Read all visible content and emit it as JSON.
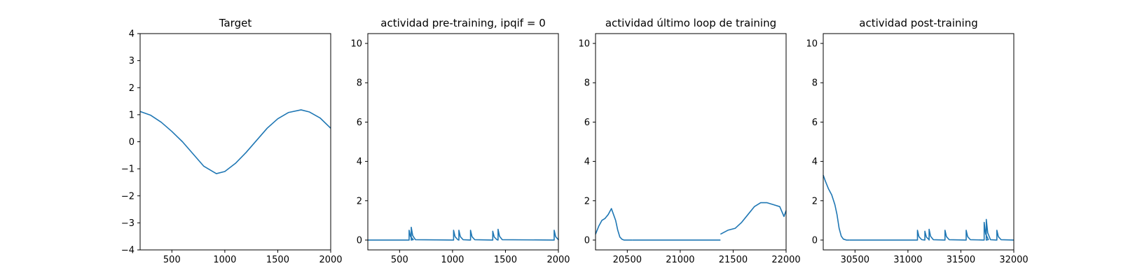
{
  "chart_data": [
    {
      "type": "line",
      "title": "Target",
      "xlim": [
        200,
        2000
      ],
      "ylim": [
        -4,
        4
      ],
      "xticks": [
        500,
        1000,
        1500,
        2000
      ],
      "yticks": [
        -4,
        -3,
        -2,
        -1,
        0,
        1,
        2,
        3,
        4
      ],
      "ytick_labels": [
        "−4",
        "−3",
        "−2",
        "−1",
        "0",
        "1",
        "2",
        "3",
        "4"
      ],
      "grid": false,
      "color": "#1f77b4",
      "series": [
        {
          "x": [
            200,
            300,
            400,
            500,
            600,
            700,
            800,
            920,
            1000,
            1100,
            1200,
            1300,
            1400,
            1500,
            1600,
            1720,
            1800,
            1900,
            2000
          ],
          "y": [
            1.12,
            0.98,
            0.72,
            0.38,
            0.0,
            -0.45,
            -0.9,
            -1.18,
            -1.1,
            -0.8,
            -0.4,
            0.05,
            0.5,
            0.85,
            1.08,
            1.18,
            1.1,
            0.88,
            0.5
          ]
        }
      ]
    },
    {
      "type": "line",
      "title": "actividad pre-training, ipqif = 0",
      "xlim": [
        200,
        2000
      ],
      "ylim": [
        -0.5,
        10.5
      ],
      "xticks": [
        500,
        1000,
        1500,
        2000
      ],
      "yticks": [
        0,
        2,
        4,
        6,
        8,
        10
      ],
      "ytick_labels": [
        "0",
        "2",
        "4",
        "6",
        "8",
        "10"
      ],
      "grid": false,
      "color": "#1f77b4",
      "baseline": 0,
      "spikes": [
        {
          "x": 590,
          "height": 0.5
        },
        {
          "x": 610,
          "height": 0.65
        },
        {
          "x": 1010,
          "height": 0.5
        },
        {
          "x": 1060,
          "height": 0.5
        },
        {
          "x": 1170,
          "height": 0.5
        },
        {
          "x": 1380,
          "height": 0.45
        },
        {
          "x": 1430,
          "height": 0.55
        },
        {
          "x": 1960,
          "height": 0.5
        }
      ]
    },
    {
      "type": "line",
      "title": "actividad último loop de training",
      "xlim": [
        20200,
        22000
      ],
      "ylim": [
        -0.5,
        10.5
      ],
      "xticks": [
        20500,
        21000,
        21500,
        22000
      ],
      "yticks": [
        0,
        2,
        4,
        6,
        8,
        10
      ],
      "ytick_labels": [
        "0",
        "2",
        "4",
        "6",
        "8",
        "10"
      ],
      "grid": false,
      "color": "#1f77b4",
      "segments": [
        {
          "x": [
            20200,
            20230,
            20260,
            20290,
            20320,
            20350,
            20370,
            20390,
            20410,
            20430,
            20450,
            20470,
            20500,
            20550
          ],
          "y": [
            0.3,
            0.7,
            1.0,
            1.1,
            1.3,
            1.6,
            1.3,
            1.0,
            0.5,
            0.15,
            0.04,
            0.0,
            0.0,
            0.0
          ]
        },
        {
          "x": [
            20550,
            21380
          ],
          "y": [
            0.0,
            0.0
          ]
        },
        {
          "x": [
            21380,
            21450,
            21520,
            21580,
            21640,
            21700,
            21760,
            21820,
            21880,
            21940,
            21980,
            22000
          ],
          "y": [
            0.3,
            0.5,
            0.6,
            0.9,
            1.3,
            1.7,
            1.9,
            1.9,
            1.8,
            1.7,
            1.2,
            1.5
          ]
        }
      ]
    },
    {
      "type": "line",
      "title": "actividad post-training",
      "xlim": [
        30200,
        32000
      ],
      "ylim": [
        -0.5,
        10.5
      ],
      "xticks": [
        30500,
        31000,
        31500,
        32000
      ],
      "yticks": [
        0,
        2,
        4,
        6,
        8,
        10
      ],
      "ytick_labels": [
        "0",
        "2",
        "4",
        "6",
        "8",
        "10"
      ],
      "grid": false,
      "color": "#1f77b4",
      "segments": [
        {
          "x": [
            30200,
            30220,
            30250,
            30280,
            30310,
            30330,
            30350,
            30370,
            30390,
            30420,
            30450
          ],
          "y": [
            3.3,
            3.0,
            2.6,
            2.3,
            1.8,
            1.3,
            0.6,
            0.2,
            0.05,
            0.0,
            0.0
          ]
        }
      ],
      "baseline": 0,
      "spikes": [
        {
          "x": 31090,
          "height": 0.5
        },
        {
          "x": 31160,
          "height": 0.45
        },
        {
          "x": 31200,
          "height": 0.55
        },
        {
          "x": 31350,
          "height": 0.5
        },
        {
          "x": 31550,
          "height": 0.5
        },
        {
          "x": 31720,
          "height": 0.9
        },
        {
          "x": 31740,
          "height": 1.05
        },
        {
          "x": 31840,
          "height": 0.5
        }
      ]
    }
  ]
}
